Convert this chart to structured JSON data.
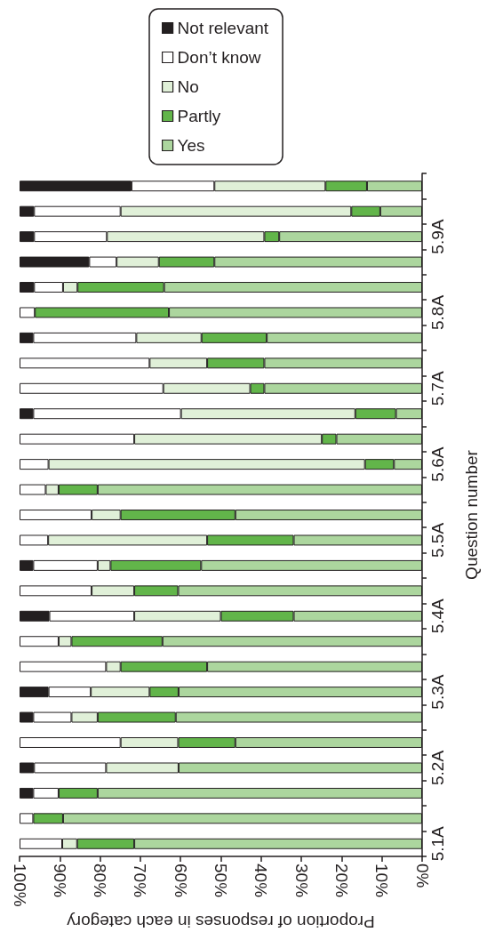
{
  "chart_data": {
    "type": "bar",
    "orientation": "horizontal",
    "stacked": true,
    "grid": false,
    "legend": "top right",
    "xlabel": "Proportion of responses in each category",
    "ylabel": "Question number",
    "categories": [
      null,
      null,
      "5.9A",
      null,
      null,
      "5.8A",
      null,
      null,
      "5.7A",
      null,
      null,
      "5.6A",
      null,
      null,
      "5.5A",
      null,
      null,
      "5.4A",
      null,
      null,
      "5.3A",
      null,
      null,
      "5.2A",
      null,
      null,
      "5.1A"
    ],
    "xlim": [
      100,
      0
    ],
    "xticks": [
      {
        "value": 100,
        "label": "100%"
      },
      {
        "value": 90,
        "label": "90%"
      },
      {
        "value": 80,
        "label": "80%"
      },
      {
        "value": 70,
        "label": "70%"
      },
      {
        "value": 60,
        "label": "60%"
      },
      {
        "value": 50,
        "label": "50%"
      },
      {
        "value": 40,
        "label": "40%"
      },
      {
        "value": 30,
        "label": "30%"
      },
      {
        "value": 20,
        "label": "20%"
      },
      {
        "value": 10,
        "label": "10%"
      },
      {
        "value": 0,
        "label": "0%"
      }
    ],
    "series": [
      {
        "name": "Yes",
        "color": "#acd69e",
        "values": [
          13.7,
          10.4,
          35.5,
          51.6,
          64.1,
          62.9,
          38.6,
          39.2,
          39.2,
          6.5,
          21.3,
          7.0,
          80.6,
          46.4,
          31.9,
          54.9,
          60.6,
          31.9,
          64.5,
          53.4,
          60.5,
          61.2,
          46.4,
          60.5,
          80.6,
          89.2,
          71.5
        ]
      },
      {
        "name": "Partly",
        "color": "#62b54a",
        "values": [
          10.3,
          7.2,
          3.7,
          13.8,
          21.5,
          33.3,
          16.2,
          14.2,
          3.5,
          10.1,
          3.6,
          7.2,
          9.7,
          28.5,
          21.5,
          22.5,
          10.9,
          18.1,
          22.6,
          21.5,
          7.2,
          19.4,
          14.2,
          0,
          9.7,
          7.4,
          14.2
        ]
      },
      {
        "name": "No",
        "color": "#e0f0d8",
        "values": [
          27.6,
          57.3,
          39.1,
          10.5,
          3.6,
          0,
          16.2,
          14.3,
          21.6,
          43.3,
          46.6,
          78.6,
          3.2,
          7.2,
          39.5,
          3.2,
          10.6,
          21.5,
          3.2,
          3.6,
          14.6,
          6.5,
          14.3,
          18.0,
          0,
          0,
          3.7
        ]
      },
      {
        "name": "Don’t know",
        "color": "#ffffff",
        "values": [
          20.6,
          21.5,
          18.1,
          6.8,
          7.2,
          3.8,
          25.6,
          32.3,
          35.7,
          36.7,
          28.5,
          7.2,
          6.5,
          17.9,
          7.1,
          16.0,
          17.9,
          21.1,
          9.7,
          21.5,
          10.5,
          9.5,
          25.1,
          17.9,
          6.3,
          3.4,
          10.6
        ]
      },
      {
        "name": "Not relevant",
        "color": "#231f20",
        "values": [
          27.8,
          3.6,
          3.6,
          17.3,
          3.6,
          0,
          3.4,
          0,
          0,
          3.4,
          0,
          0,
          0,
          0,
          0,
          3.4,
          0,
          7.4,
          0,
          0,
          7.2,
          3.4,
          0,
          3.6,
          3.4,
          0,
          0
        ]
      }
    ]
  }
}
